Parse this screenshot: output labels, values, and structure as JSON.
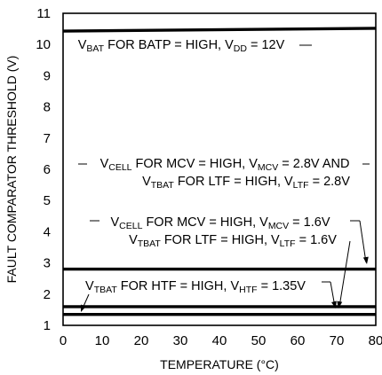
{
  "chart_data": {
    "type": "line",
    "title": "",
    "xlabel": "TEMPERATURE (°C)",
    "ylabel": "FAULT COMPARATOR THRESHOLD (V)",
    "xlim": [
      0,
      80
    ],
    "ylim": [
      1,
      11
    ],
    "x_ticks": [
      "0",
      "10",
      "20",
      "30",
      "40",
      "50",
      "60",
      "70",
      "80"
    ],
    "y_ticks": [
      "1",
      "2",
      "3",
      "4",
      "5",
      "6",
      "7",
      "8",
      "9",
      "10",
      "11"
    ],
    "grid": false,
    "series": [
      {
        "x": [
          0,
          80
        ],
        "values": [
          10.43,
          10.52
        ]
      },
      {
        "x": [
          0,
          80
        ],
        "values": [
          2.8,
          2.8
        ]
      },
      {
        "x": [
          0,
          80
        ],
        "values": [
          1.6,
          1.6
        ]
      },
      {
        "x": [
          0,
          80
        ],
        "values": [
          1.35,
          1.35
        ]
      }
    ],
    "annotations": [
      {
        "lines": [
          [
            [
              "V",
              ""
            ],
            [
              "BAT",
              "sub"
            ],
            [
              " FOR BATP = HIGH, V",
              ""
            ],
            [
              "DD",
              "sub"
            ],
            [
              " = 12V",
              ""
            ]
          ]
        ]
      },
      {
        "lines": [
          [
            [
              "V",
              ""
            ],
            [
              "CELL",
              "sub"
            ],
            [
              " FOR MCV = HIGH, V",
              ""
            ],
            [
              "MCV",
              "sub"
            ],
            [
              " = 2.8V AND",
              ""
            ]
          ],
          [
            [
              "V",
              ""
            ],
            [
              "TBAT",
              "sub"
            ],
            [
              " FOR LTF = HIGH, V",
              ""
            ],
            [
              "LTF",
              "sub"
            ],
            [
              " = 2.8V",
              ""
            ]
          ]
        ]
      },
      {
        "lines": [
          [
            [
              "V",
              ""
            ],
            [
              "CELL",
              "sub"
            ],
            [
              " FOR MCV = HIGH, V",
              ""
            ],
            [
              "MCV",
              "sub"
            ],
            [
              " = 1.6V",
              ""
            ]
          ],
          [
            [
              "V",
              ""
            ],
            [
              "TBAT",
              "sub"
            ],
            [
              " FOR LTF = HIGH, V",
              ""
            ],
            [
              "LTF",
              "sub"
            ],
            [
              " = 1.6V",
              ""
            ]
          ]
        ]
      },
      {
        "lines": [
          [
            [
              "V",
              ""
            ],
            [
              "TBAT",
              "sub"
            ],
            [
              " FOR HTF = HIGH, V",
              ""
            ],
            [
              "HTF",
              "sub"
            ],
            [
              " = 1.35V",
              ""
            ]
          ]
        ]
      }
    ]
  }
}
